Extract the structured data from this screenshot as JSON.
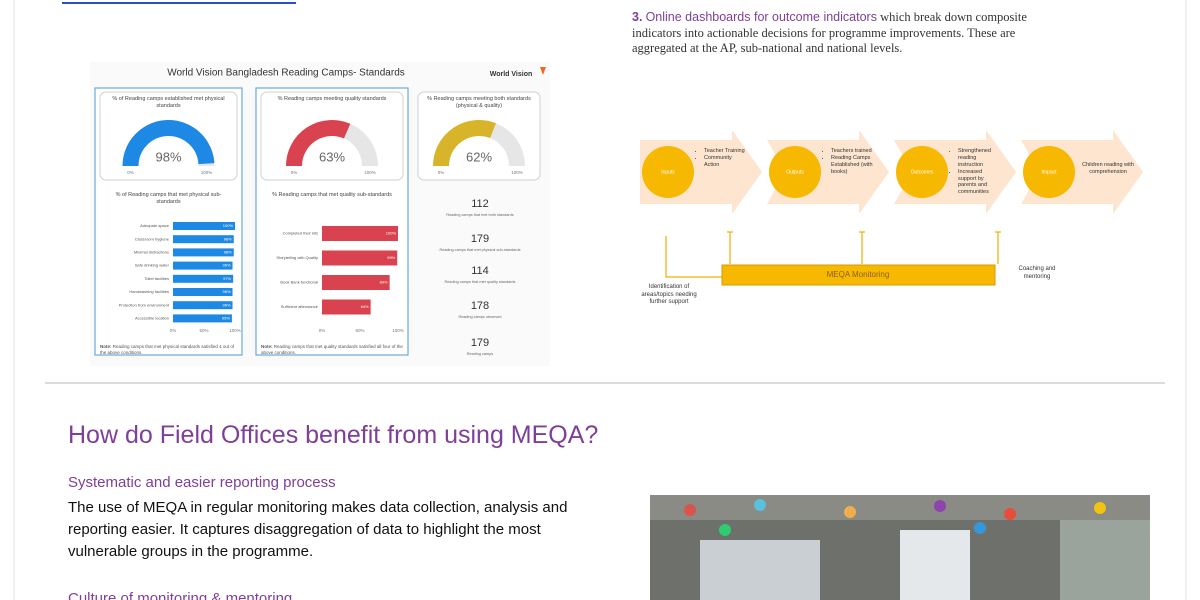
{
  "dashboard": {
    "title": "World Vision Bangladesh Reading Camps- Standards",
    "logo": "World Vision",
    "gauge_ticks": [
      {
        "value": 0,
        "label": "0%"
      },
      {
        "value": 100,
        "label": "100%"
      }
    ],
    "gauges": [
      {
        "label": "% of Reading camps established met physical standards",
        "value": 98,
        "value_label": "98%",
        "color": "#1e88e5"
      },
      {
        "label": "% Reading camps meeting quality standards",
        "value": 63,
        "value_label": "63%",
        "color": "#d9434f"
      },
      {
        "label": "% Reading camps meeting both standards (physical & quality)",
        "value": 62,
        "value_label": "62%",
        "color": "#d8b42a"
      }
    ],
    "bar_charts": [
      {
        "title": "% of Reading camps that met physical sub-standards",
        "categories": [
          "Adequate space",
          "Classroom hygiene",
          "Minimal distractions",
          "Safe drinking water",
          "Toilet facilities",
          "Handwashing facilities",
          "Protection from environment",
          "Accessible location"
        ],
        "values": [
          100,
          98,
          98,
          96,
          97,
          96,
          96,
          95
        ],
        "value_labels": [
          "100%",
          "98%",
          "98%",
          "96%",
          "97%",
          "96%",
          "96%",
          "95%"
        ],
        "color": "#1e88e5",
        "xlim": [
          0,
          100
        ],
        "xticks": [
          {
            "value": 0,
            "label": "0%"
          },
          {
            "value": 50,
            "label": "50%"
          },
          {
            "value": 100,
            "label": "100%"
          }
        ],
        "note_label": "Note:",
        "note": "Reading camps that met physical standards satisfied 4 out of the above conditions."
      },
      {
        "title": "% Reading camps that met quality sub-standards",
        "categories": [
          "Completed their kits",
          "Storytelling with Quality",
          "Book Bank functional",
          "Sufficient attendance"
        ],
        "values": [
          100,
          99,
          89,
          64
        ],
        "value_labels": [
          "100%",
          "99%",
          "89%",
          "64%"
        ],
        "color": "#d9434f",
        "xlim": [
          0,
          100
        ],
        "xticks": [
          {
            "value": 0,
            "label": "0%"
          },
          {
            "value": 50,
            "label": "50%"
          },
          {
            "value": 100,
            "label": "100%"
          }
        ],
        "note_label": "Note:",
        "note": "Reading camps that met quality standards satisfied all four of the above conditions."
      }
    ],
    "stats": [
      {
        "value": 112,
        "label": "Reading camps that met both standards"
      },
      {
        "value": 179,
        "label": "Reading camps that met physical sub-standards"
      },
      {
        "value": 114,
        "label": "Reading camps that met quality standards"
      },
      {
        "value": 178,
        "label": "Reading camps observed"
      },
      {
        "value": 179,
        "label": "Reading camps"
      }
    ]
  },
  "right_column": {
    "number": "3.",
    "highlight": "Online dashboards for outcome indicators",
    "text": "which break down composite indicators into actionable decisions for programme improvements. These are aggregated at the AP, sub-national and national levels."
  },
  "diagram": {
    "stages": [
      {
        "label": "Inputs",
        "bullets": [
          "Teacher Training",
          "Community Action"
        ]
      },
      {
        "label": "Outputs",
        "bullets": [
          "Teachers trained",
          "Reading Camps Established (with books)"
        ]
      },
      {
        "label": "Outcomes",
        "bullets": [
          "Strengthened reading instruction",
          "Increased support by parents and communities"
        ]
      },
      {
        "label": "Impact",
        "bullets": [
          "Children reading with comprehension"
        ]
      }
    ],
    "monitoring": "MEQA Monitoring",
    "coaching": "Coaching and mentoring",
    "identification": "Identification of areas/topics needing further support"
  },
  "section": {
    "heading": "How do Field Offices benefit from using MEQA?",
    "subheading_1": "Systematic and easier reporting process",
    "paragraph_1": "The use of MEQA in regular monitoring makes data collection, analysis and reporting easier. It captures disaggregation of data to highlight the most vulnerable groups in the programme.",
    "subheading_2": "Culture of monitoring & mentoring"
  }
}
